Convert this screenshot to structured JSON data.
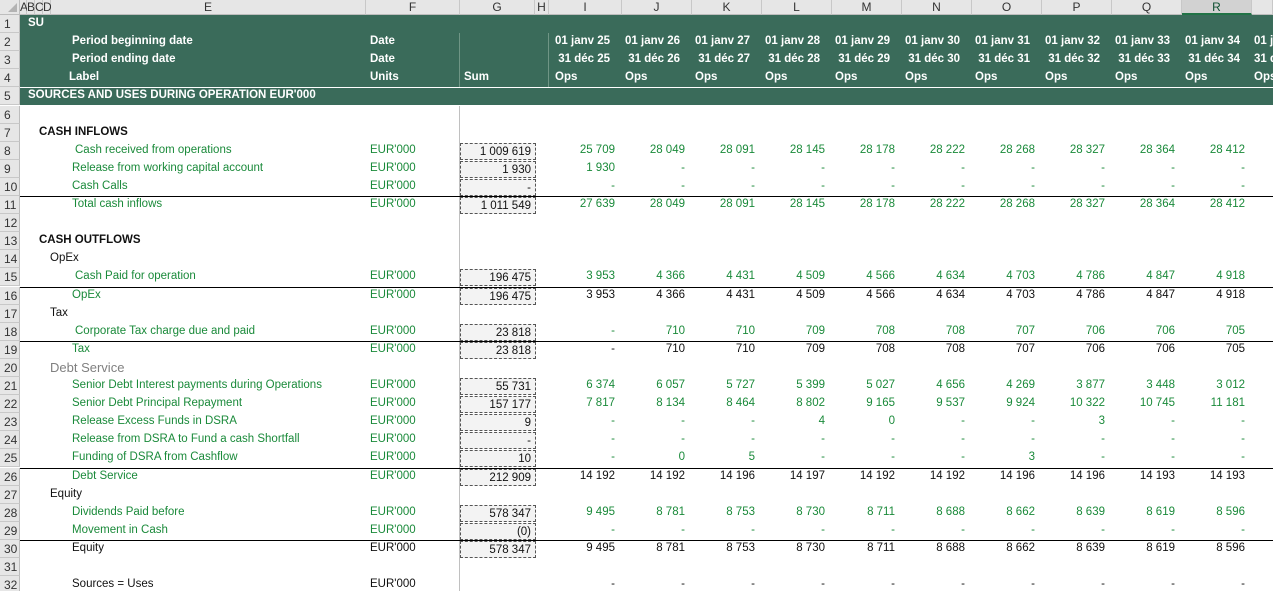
{
  "columns": [
    "A",
    "B",
    "C",
    "D",
    "E",
    "F",
    "G",
    "H",
    "I",
    "J",
    "K",
    "L",
    "M",
    "N",
    "O",
    "P",
    "Q",
    "R",
    ""
  ],
  "selected_column": "R",
  "rows": [
    "1",
    "2",
    "3",
    "4",
    "5",
    "6",
    "7",
    "8",
    "9",
    "10",
    "11",
    "12",
    "13",
    "14",
    "15",
    "16",
    "17",
    "18",
    "19",
    "20",
    "21",
    "22",
    "23",
    "24",
    "25",
    "26",
    "27",
    "28",
    "29",
    "30",
    "31",
    "32"
  ],
  "header": {
    "title": "SU",
    "period_begin_label": "Period beginning date",
    "period_end_label": "Period ending date",
    "label_label": "Label",
    "date1": "Date",
    "date2": "Date",
    "units": "Units",
    "sum": "Sum",
    "begin_dates": [
      "01 janv 25",
      "01 janv 26",
      "01 janv 27",
      "01 janv 28",
      "01 janv 29",
      "01 janv 30",
      "01 janv 31",
      "01 janv 32",
      "01 janv 33",
      "01 janv 34",
      "01 j"
    ],
    "end_dates": [
      "31 déc 25",
      "31 déc 26",
      "31 déc 27",
      "31 déc 28",
      "31 déc 29",
      "31 déc 30",
      "31 déc 31",
      "31 déc 32",
      "31 déc 33",
      "31 déc 34",
      "31 d"
    ],
    "ops": [
      "Ops",
      "Ops",
      "Ops",
      "Ops",
      "Ops",
      "Ops",
      "Ops",
      "Ops",
      "Ops",
      "Ops",
      "Ops"
    ],
    "section": "SOURCES AND USES DURING OPERATION EUR'000"
  },
  "unit": "EUR'000",
  "lines": [
    {
      "row": 7,
      "label": "CASH INFLOWS",
      "style": "bold",
      "indent": 1
    },
    {
      "row": 8,
      "label": "Cash received from operations",
      "style": "green",
      "indent": 4,
      "unit": "EUR'000",
      "sum": "1 009 619",
      "values": [
        "25 709",
        "28 049",
        "28 091",
        "28 145",
        "28 178",
        "28 222",
        "28 268",
        "28 327",
        "28 364",
        "28 412"
      ]
    },
    {
      "row": 9,
      "label": "Release from working capital account",
      "style": "green",
      "indent": 3,
      "unit": "EUR'000",
      "sum": "1 930",
      "values": [
        "1 930",
        "-",
        "-",
        "-",
        "-",
        "-",
        "-",
        "-",
        "-",
        "-"
      ]
    },
    {
      "row": 10,
      "label": "Cash Calls",
      "style": "green",
      "indent": 3,
      "unit": "EUR'000",
      "sum": "-",
      "values": [
        "-",
        "-",
        "-",
        "-",
        "-",
        "-",
        "-",
        "-",
        "-",
        "-"
      ]
    },
    {
      "row": 11,
      "label": "Total cash inflows",
      "style": "green",
      "indent": 3,
      "unit": "EUR'000",
      "sum": "1 011 549",
      "values": [
        "27 639",
        "28 049",
        "28 091",
        "28 145",
        "28 178",
        "28 222",
        "28 268",
        "28 327",
        "28 364",
        "28 412"
      ],
      "valstyle": "green"
    },
    {
      "row": 13,
      "label": "CASH OUTFLOWS",
      "style": "bold",
      "indent": 1
    },
    {
      "row": 14,
      "label": "OpEx",
      "style": "black",
      "indent": 2
    },
    {
      "row": 15,
      "label": "Cash Paid for operation",
      "style": "green",
      "indent": 4,
      "unit": "EUR'000",
      "sum": "196 475",
      "values": [
        "3 953",
        "4 366",
        "4 431",
        "4 509",
        "4 566",
        "4 634",
        "4 703",
        "4 786",
        "4 847",
        "4 918"
      ]
    },
    {
      "row": 16,
      "label": "OpEx",
      "style": "green",
      "indent": 3,
      "unit": "EUR'000",
      "sum": "196 475",
      "values": [
        "3 953",
        "4 366",
        "4 431",
        "4 509",
        "4 566",
        "4 634",
        "4 703",
        "4 786",
        "4 847",
        "4 918"
      ],
      "valstyle": "black"
    },
    {
      "row": 17,
      "label": "Tax",
      "style": "black",
      "indent": 2
    },
    {
      "row": 18,
      "label": "Corporate Tax charge due and paid",
      "style": "green",
      "indent": 4,
      "unit": "EUR'000",
      "sum": "23 818",
      "values": [
        "-",
        "710",
        "710",
        "709",
        "708",
        "708",
        "707",
        "706",
        "706",
        "705"
      ]
    },
    {
      "row": 19,
      "label": "Tax",
      "style": "green",
      "indent": 3,
      "unit": "EUR'000",
      "sum": "23 818",
      "values": [
        "-",
        "710",
        "710",
        "709",
        "708",
        "708",
        "707",
        "706",
        "706",
        "705"
      ],
      "valstyle": "black"
    },
    {
      "row": 20,
      "label": "Debt Service",
      "style": "grey",
      "indent": 2
    },
    {
      "row": 21,
      "label": "Senior Debt  Interest payments during Operations",
      "style": "green",
      "indent": 3,
      "unit": "EUR'000",
      "sum": "55 731",
      "values": [
        "6 374",
        "6 057",
        "5 727",
        "5 399",
        "5 027",
        "4 656",
        "4 269",
        "3 877",
        "3 448",
        "3 012"
      ]
    },
    {
      "row": 22,
      "label": "Senior Debt  Principal Repayment",
      "style": "green",
      "indent": 3,
      "unit": "EUR'000",
      "sum": "157 177",
      "values": [
        "7 817",
        "8 134",
        "8 464",
        "8 802",
        "9 165",
        "9 537",
        "9 924",
        "10 322",
        "10 745",
        "11 181"
      ]
    },
    {
      "row": 23,
      "label": "Release Excess Funds in DSRA",
      "style": "green",
      "indent": 3,
      "unit": "EUR'000",
      "sum": "9",
      "values": [
        "-",
        "-",
        "-",
        "4",
        "0",
        "-",
        "-",
        "3",
        "-",
        "-"
      ]
    },
    {
      "row": 24,
      "label": "Release from DSRA to Fund a cash Shortfall",
      "style": "green",
      "indent": 3,
      "unit": "EUR'000",
      "sum": "-",
      "values": [
        "-",
        "-",
        "-",
        "-",
        "-",
        "-",
        "-",
        "-",
        "-",
        "-"
      ]
    },
    {
      "row": 25,
      "label": "Funding of DSRA from Cashflow",
      "style": "green",
      "indent": 3,
      "unit": "EUR'000",
      "sum": "10",
      "values": [
        "-",
        "0",
        "5",
        "-",
        "-",
        "-",
        "3",
        "-",
        "-",
        "-"
      ]
    },
    {
      "row": 26,
      "label": "Debt Service",
      "style": "green",
      "indent": 3,
      "unit": "EUR'000",
      "sum": "212 909",
      "values": [
        "14 192",
        "14 192",
        "14 196",
        "14 197",
        "14 192",
        "14 192",
        "14 196",
        "14 196",
        "14 193",
        "14 193"
      ],
      "valstyle": "black"
    },
    {
      "row": 27,
      "label": "Equity",
      "style": "black",
      "indent": 2
    },
    {
      "row": 28,
      "label": "Dividends Paid before",
      "style": "green",
      "indent": 3,
      "unit": "EUR'000",
      "sum": "578 347",
      "values": [
        "9 495",
        "8 781",
        "8 753",
        "8 730",
        "8 711",
        "8 688",
        "8 662",
        "8 639",
        "8 619",
        "8 596"
      ]
    },
    {
      "row": 29,
      "label": "Movement in Cash",
      "style": "green",
      "indent": 3,
      "unit": "EUR'000",
      "sum": "(0)",
      "values": [
        "-",
        "-",
        "-",
        "-",
        "-",
        "-",
        "-",
        "-",
        "-",
        "-"
      ]
    },
    {
      "row": 30,
      "label": "Equity",
      "style": "black",
      "indent": 3,
      "unit": "EUR'000",
      "unitstyle": "black",
      "sum": "578 347",
      "values": [
        "9 495",
        "8 781",
        "8 753",
        "8 730",
        "8 711",
        "8 688",
        "8 662",
        "8 639",
        "8 619",
        "8 596"
      ],
      "valstyle": "black"
    },
    {
      "row": 32,
      "label": "Sources = Uses",
      "style": "black",
      "indent": 3,
      "unit": "EUR'000",
      "unitstyle": "black",
      "values": [
        "-",
        "-",
        "-",
        "-",
        "-",
        "-",
        "-",
        "-",
        "-",
        "-"
      ],
      "valstyle": "black"
    }
  ],
  "total_rows": [
    11,
    16,
    19,
    26,
    30
  ]
}
